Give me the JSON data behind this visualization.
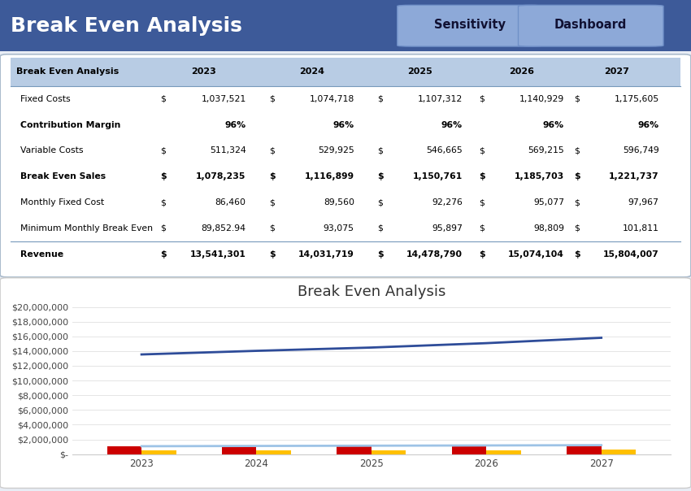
{
  "title": "Break Even Analysis",
  "header_bg": "#3D5A99",
  "header_text_color": "#FFFFFF",
  "button_bg": "#8DA9D8",
  "button_text": [
    "Sensitivity",
    "Dashboard"
  ],
  "table_header_bg": "#B8CCE4",
  "table_header_text": "#000000",
  "table_bg": "#FFFFFF",
  "years": [
    "2023",
    "2024",
    "2025",
    "2026",
    "2027"
  ],
  "rows": [
    {
      "label": "Fixed Costs",
      "bold": false,
      "dollar": true,
      "values": [
        "1,037,521",
        "1,074,718",
        "1,107,312",
        "1,140,929",
        "1,175,605"
      ]
    },
    {
      "label": "Contribution Margin",
      "bold": true,
      "dollar": false,
      "values": [
        "96%",
        "96%",
        "96%",
        "96%",
        "96%"
      ]
    },
    {
      "label": "Variable Costs",
      "bold": false,
      "dollar": true,
      "values": [
        "511,324",
        "529,925",
        "546,665",
        "569,215",
        "596,749"
      ]
    },
    {
      "label": "Break Even Sales",
      "bold": true,
      "dollar": true,
      "values": [
        "1,078,235",
        "1,116,899",
        "1,150,761",
        "1,185,703",
        "1,221,737"
      ]
    },
    {
      "label": "Monthly Fixed Cost",
      "bold": false,
      "dollar": true,
      "values": [
        "86,460",
        "89,560",
        "92,276",
        "95,077",
        "97,967"
      ]
    },
    {
      "label": "Minimum Monthly Break Even",
      "bold": false,
      "dollar": true,
      "values": [
        "89,852.94",
        "93,075",
        "95,897",
        "98,809",
        "101,811"
      ]
    },
    {
      "label": "Revenue",
      "bold": true,
      "dollar": true,
      "values": [
        "13,541,301",
        "14,031,719",
        "14,478,790",
        "15,074,104",
        "15,804,007"
      ]
    }
  ],
  "chart_title": "Break Even Analysis",
  "chart_years": [
    2023,
    2024,
    2025,
    2026,
    2027
  ],
  "fixed_costs": [
    1037521,
    1074718,
    1107312,
    1140929,
    1175605
  ],
  "variable_costs": [
    511324,
    529925,
    546665,
    569215,
    596749
  ],
  "break_even_sales": [
    1078235,
    1116899,
    1150761,
    1185703,
    1221737
  ],
  "revenue": [
    13541301,
    14031719,
    14478790,
    15074104,
    15804007
  ],
  "bar_width": 0.3,
  "fixed_costs_color": "#CC0000",
  "variable_costs_color": "#FFC000",
  "break_even_sales_color": "#9DC3E6",
  "revenue_color": "#2E4C99",
  "ylim_max": 20000000,
  "ytick_step": 2000000
}
